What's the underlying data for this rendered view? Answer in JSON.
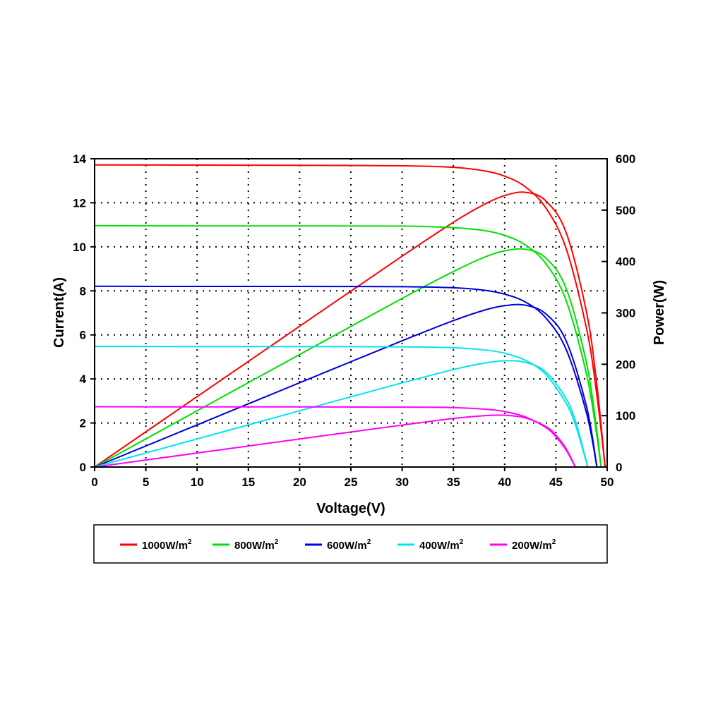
{
  "chart_data": {
    "type": "line",
    "xlabel": "Voltage(V)",
    "ylabel": "Current(A)",
    "y2label": "Power(W)",
    "xlim": [
      0,
      50
    ],
    "ylim": [
      0,
      14
    ],
    "y2lim": [
      0,
      600
    ],
    "xticks": [
      0,
      5,
      10,
      15,
      20,
      25,
      30,
      35,
      40,
      45,
      50
    ],
    "yticks": [
      0,
      2,
      4,
      6,
      8,
      10,
      12,
      14
    ],
    "y2ticks": [
      0,
      100,
      200,
      300,
      400,
      500,
      600
    ],
    "grid": true,
    "legend_position": "bottom",
    "series": [
      {
        "name": "1000W/m",
        "sup": "2",
        "color": "#ff0000",
        "V": [
          0,
          10,
          20,
          30,
          35,
          38,
          40,
          42,
          44,
          46,
          48,
          49,
          49.8
        ],
        "I": [
          13.72,
          13.71,
          13.7,
          13.68,
          13.61,
          13.45,
          13.21,
          12.73,
          11.78,
          9.92,
          6.26,
          3.25,
          0
        ]
      },
      {
        "name": "800W/m",
        "sup": "2",
        "color": "#00e000",
        "V": [
          0,
          10,
          20,
          30,
          35,
          38,
          40,
          42,
          44,
          46,
          48,
          49,
          49.4
        ],
        "I": [
          10.96,
          10.95,
          10.95,
          10.94,
          10.87,
          10.74,
          10.52,
          10.09,
          9.25,
          7.56,
          4.19,
          1.41,
          0
        ]
      },
      {
        "name": "600W/m",
        "sup": "2",
        "color": "#0000dd",
        "V": [
          0,
          10,
          20,
          30,
          35,
          38,
          40,
          42,
          44,
          46,
          48,
          49
        ],
        "I": [
          8.21,
          8.2,
          8.2,
          8.19,
          8.14,
          8.03,
          7.85,
          7.5,
          6.78,
          5.34,
          2.43,
          0
        ]
      },
      {
        "name": "400W/m",
        "sup": "2",
        "color": "#00e5ee",
        "V": [
          0,
          10,
          20,
          30,
          35,
          38,
          40,
          42,
          44,
          46,
          47,
          48.1
        ],
        "I": [
          5.48,
          5.47,
          5.47,
          5.46,
          5.42,
          5.32,
          5.17,
          4.85,
          4.21,
          2.89,
          1.78,
          0
        ]
      },
      {
        "name": "200W/m",
        "sup": "2",
        "color": "#ff00ff",
        "V": [
          0,
          10,
          20,
          30,
          35,
          38,
          40,
          42,
          44,
          45,
          46,
          46.9
        ],
        "I": [
          2.74,
          2.73,
          2.73,
          2.72,
          2.7,
          2.63,
          2.52,
          2.28,
          1.8,
          1.38,
          0.77,
          0
        ]
      }
    ]
  }
}
